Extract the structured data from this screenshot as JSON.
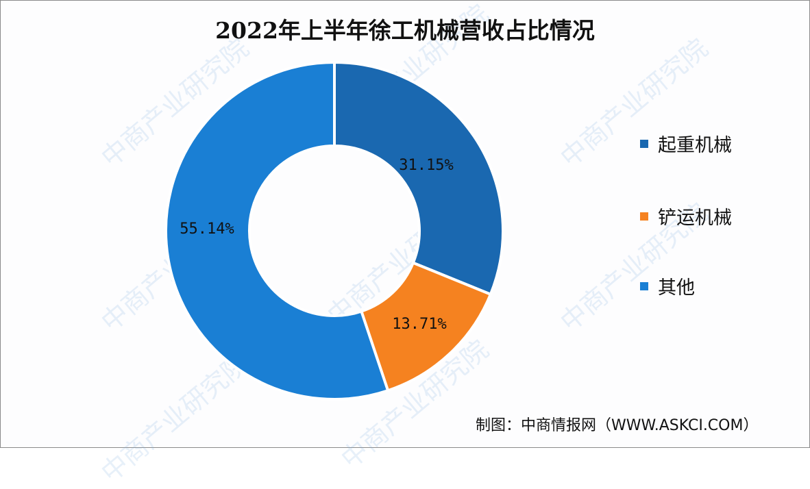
{
  "title": "2022年上半年徐工机械营收占比情况",
  "source": "制图：中商情报网（WWW.ASKCI.COM）",
  "watermark": "中商产业研究院",
  "legend": [
    {
      "label": "起重机械",
      "color": "#1a68b0"
    },
    {
      "label": "铲运机械",
      "color": "#f58220"
    },
    {
      "label": "其他",
      "color": "#1a7fd4"
    }
  ],
  "slices": [
    {
      "label": "31.15%",
      "color": "#1a68b0"
    },
    {
      "label": "13.71%",
      "color": "#f58220"
    },
    {
      "label": "55.14%",
      "color": "#1a7fd4"
    }
  ],
  "chart_data": {
    "type": "pie",
    "subtype": "donut",
    "title": "2022年上半年徐工机械营收占比情况",
    "categories": [
      "起重机械",
      "铲运机械",
      "其他"
    ],
    "values": [
      31.15,
      13.71,
      55.14
    ],
    "unit": "%",
    "colors": [
      "#1a68b0",
      "#f58220",
      "#1a7fd4"
    ],
    "data_labels": [
      "31.15%",
      "13.71%",
      "55.14%"
    ],
    "legend_position": "right",
    "start_angle": "12 o'clock, clockwise",
    "source": "制图：中商情报网（WWW.ASKCI.COM）"
  }
}
